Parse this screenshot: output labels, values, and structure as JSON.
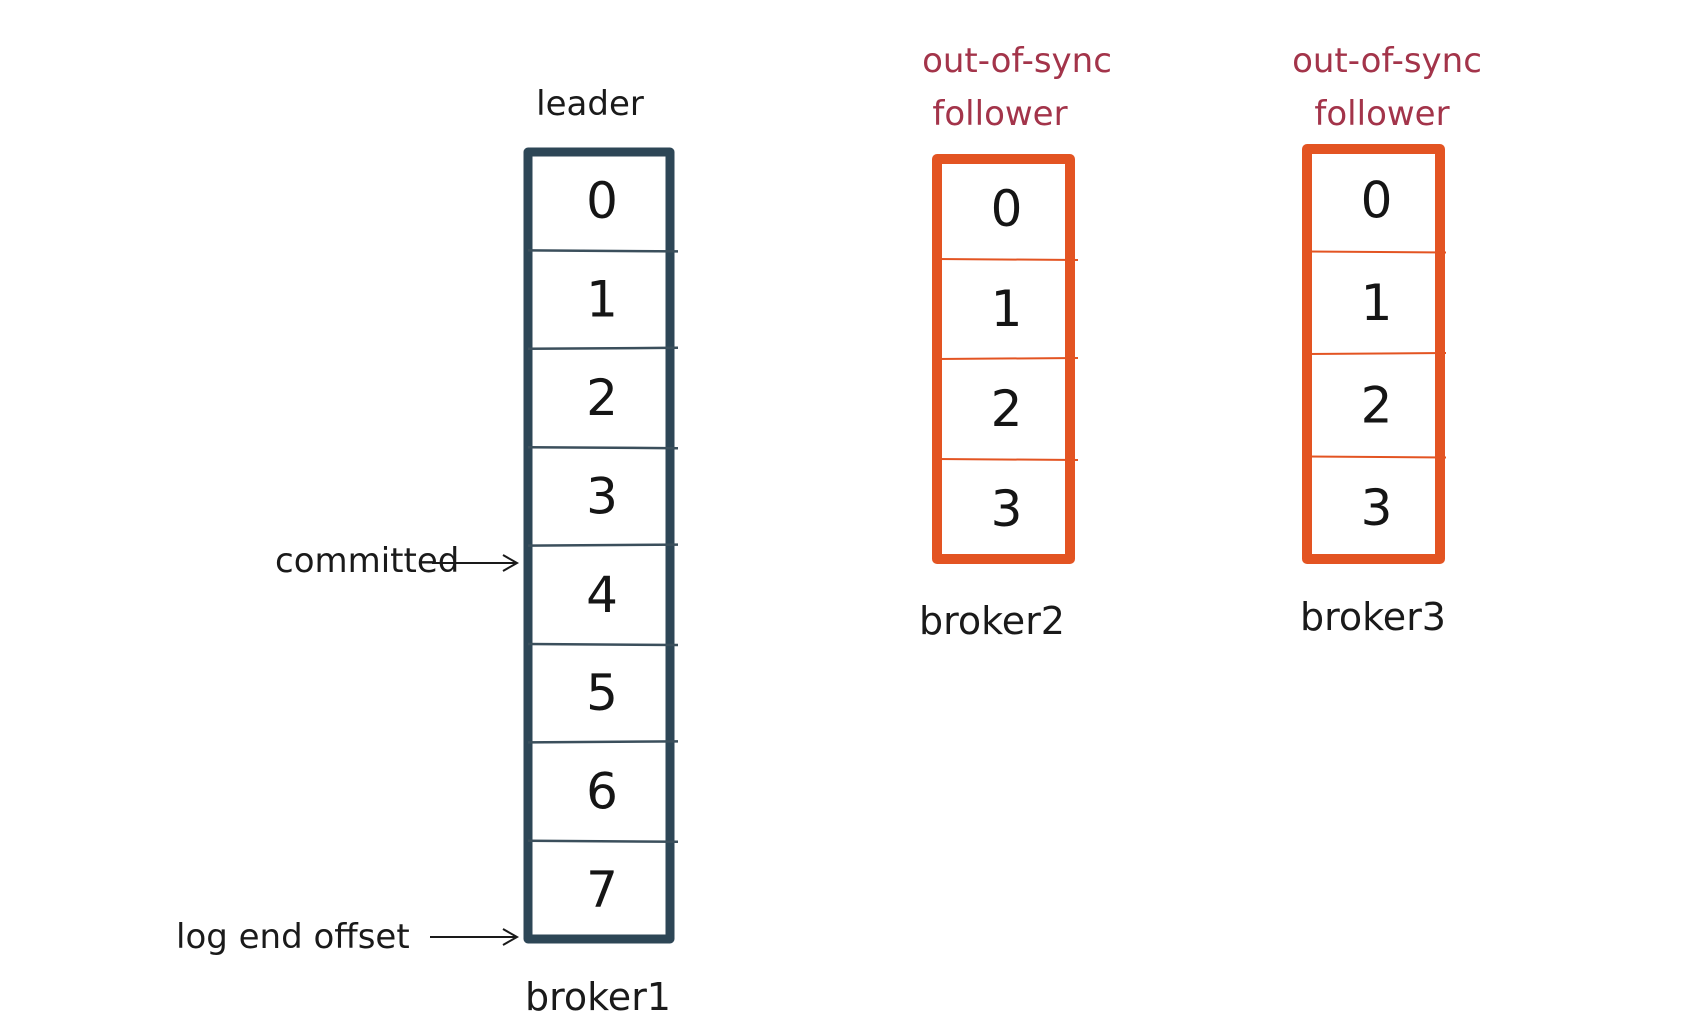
{
  "colors": {
    "leader": "#2d4656",
    "follower": "#e35422",
    "follower_text": "#a3344a",
    "ink": "#1a1a1a"
  },
  "brokers": [
    {
      "role": "leader",
      "header_lines": [
        "leader"
      ],
      "label": "broker1",
      "offsets": [
        "0",
        "1",
        "2",
        "3",
        "4",
        "5",
        "6",
        "7"
      ]
    },
    {
      "role": "follower",
      "header_lines": [
        "out-of-sync",
        "follower"
      ],
      "label": "broker2",
      "offsets": [
        "0",
        "1",
        "2",
        "3"
      ]
    },
    {
      "role": "follower",
      "header_lines": [
        "out-of-sync",
        "follower"
      ],
      "label": "broker3",
      "offsets": [
        "0",
        "1",
        "2",
        "3"
      ]
    }
  ],
  "annotations": {
    "committed": "committed",
    "log_end_offset": "log end offset"
  }
}
